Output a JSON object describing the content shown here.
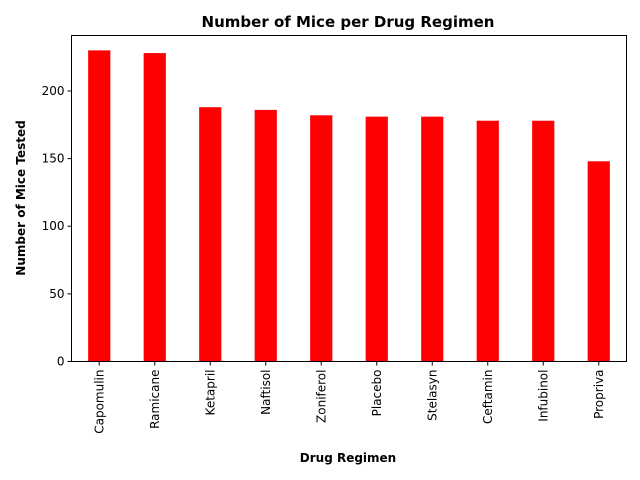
{
  "chart_data": {
    "type": "bar",
    "title": "Number of Mice per Drug Regimen",
    "xlabel": "Drug Regimen",
    "ylabel": "Number of Mice Tested",
    "categories": [
      "Capomulin",
      "Ramicane",
      "Ketapril",
      "Naftisol",
      "Zoniferol",
      "Placebo",
      "Stelasyn",
      "Ceftamin",
      "Infubinol",
      "Propriva"
    ],
    "values": [
      230,
      228,
      188,
      186,
      182,
      181,
      181,
      178,
      178,
      148
    ],
    "ylim": [
      0,
      241
    ],
    "yticks": [
      0,
      50,
      100,
      150,
      200
    ],
    "grid": false,
    "legend": "none",
    "bar_color": "#ff0000"
  }
}
